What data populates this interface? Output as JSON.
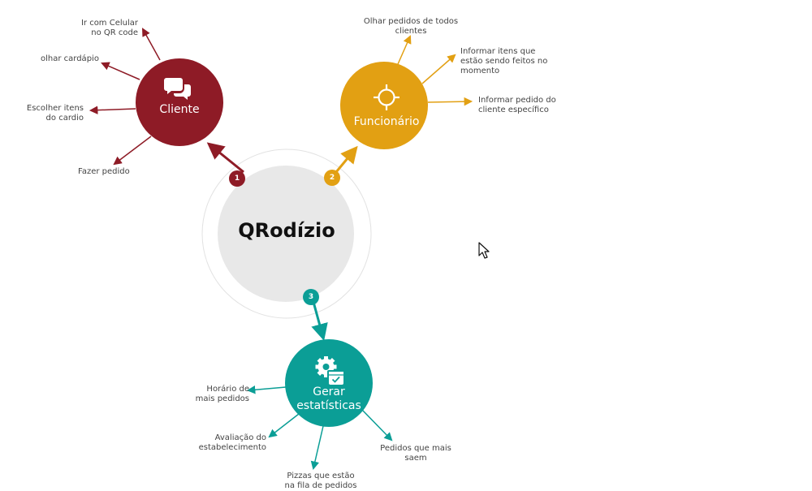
{
  "center": {
    "title": "QRodízio"
  },
  "nodes": {
    "cliente": {
      "title": "Cliente",
      "badge": "1",
      "color": "#8e1b26",
      "icon": "chat-bubbles-icon",
      "items": [
        "Ir com Celular\nno QR code",
        "olhar cardápio",
        "Escolher itens\ndo cardio",
        "Fazer pedido"
      ]
    },
    "funcionario": {
      "title": "Funcionário",
      "badge": "2",
      "color": "#e2a013",
      "icon": "crosshair-icon",
      "items": [
        "Olhar pedidos de todos\nclientes",
        "Informar itens que\nestão sendo feitos no\nmomento",
        "Informar pedido do\ncliente específico"
      ]
    },
    "estatisticas": {
      "title": "Gerar\nestatísticas",
      "badge": "3",
      "color": "#0b9e96",
      "icon": "gear-calendar-icon",
      "items": [
        "Horário de\nmais pedidos",
        "Avaliação do\nestabelecimento",
        "Pizzas que estão\nna fila de pedidos",
        "Pedidos que mais\nsaem"
      ]
    }
  }
}
